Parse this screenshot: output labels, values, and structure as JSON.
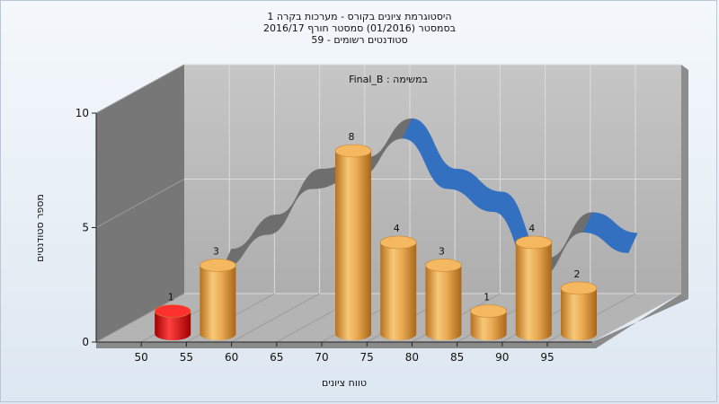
{
  "titles": [
    "היסטוגרמת ציונים בקורס - מערכות בקרה 1",
    "בסמסטר  (01/2016)  סמסטר חורף 2016/17",
    "סטודנטים רשומים - 59"
  ],
  "chart_data": {
    "type": "bar",
    "subtitle": "במשימה : Final_B",
    "xlabel": "טווח ציונים",
    "ylabel": "מספר סטודנטים",
    "ylim": [
      0,
      10
    ],
    "yticks": [
      "0",
      "5",
      "10"
    ],
    "xticks": [
      "50",
      "55",
      "60",
      "65",
      "70",
      "75",
      "80",
      "85",
      "90",
      "95"
    ],
    "bars": [
      {
        "x": 50,
        "value": 1,
        "label": "1",
        "color": "#e01010"
      },
      {
        "x": 55,
        "value": 3,
        "label": "3",
        "color": "#e6a44a"
      },
      {
        "x": 70,
        "value": 8,
        "label": "8",
        "color": "#e6a44a"
      },
      {
        "x": 75,
        "value": 4,
        "label": "4",
        "color": "#e6a44a"
      },
      {
        "x": 80,
        "value": 3,
        "label": "3",
        "color": "#e6a44a"
      },
      {
        "x": 85,
        "value": 1,
        "label": "1",
        "color": "#e6a44a"
      },
      {
        "x": 90,
        "value": 4,
        "label": "4",
        "color": "#e6a44a"
      },
      {
        "x": 95,
        "value": 2,
        "label": "2",
        "color": "#e6a44a"
      }
    ],
    "curve": [
      {
        "x": 55,
        "y": 3
      },
      {
        "x": 60,
        "y": 4.5
      },
      {
        "x": 65,
        "y": 6.5
      },
      {
        "x": 70,
        "y": 7
      },
      {
        "x": 75,
        "y": 8.7
      },
      {
        "x": 80,
        "y": 6.5
      },
      {
        "x": 85,
        "y": 5.5
      },
      {
        "x": 90,
        "y": 2.6
      },
      {
        "x": 95,
        "y": 4.6
      },
      {
        "x": 100,
        "y": 3.7
      }
    ],
    "colors": {
      "curve_front": "#3370c0",
      "curve_back": "#6e6e6e",
      "bar": "#e6a44a",
      "bar_first": "#e01010"
    },
    "grid": true
  }
}
